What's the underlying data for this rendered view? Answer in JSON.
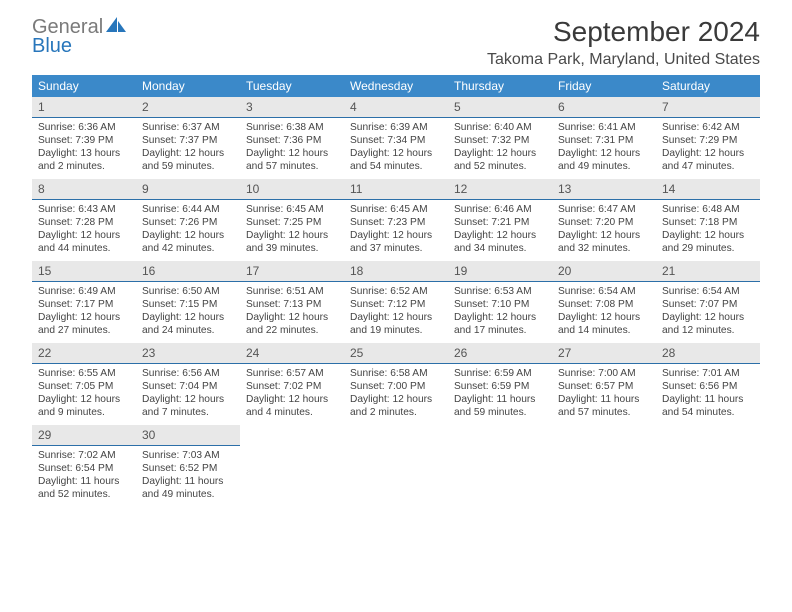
{
  "logo": {
    "line1": "General",
    "line2": "Blue"
  },
  "title": "September 2024",
  "location": "Takoma Park, Maryland, United States",
  "colors": {
    "header_bg": "#3b89c9",
    "daynum_bg": "#e8e8e8",
    "daynum_border": "#2c6fa8",
    "text": "#444444",
    "logo_gray": "#7a7a7a",
    "logo_blue": "#2876bb"
  },
  "day_names": [
    "Sunday",
    "Monday",
    "Tuesday",
    "Wednesday",
    "Thursday",
    "Friday",
    "Saturday"
  ],
  "weeks": [
    [
      {
        "num": "1",
        "sunrise": "Sunrise: 6:36 AM",
        "sunset": "Sunset: 7:39 PM",
        "daylight": "Daylight: 13 hours and 2 minutes."
      },
      {
        "num": "2",
        "sunrise": "Sunrise: 6:37 AM",
        "sunset": "Sunset: 7:37 PM",
        "daylight": "Daylight: 12 hours and 59 minutes."
      },
      {
        "num": "3",
        "sunrise": "Sunrise: 6:38 AM",
        "sunset": "Sunset: 7:36 PM",
        "daylight": "Daylight: 12 hours and 57 minutes."
      },
      {
        "num": "4",
        "sunrise": "Sunrise: 6:39 AM",
        "sunset": "Sunset: 7:34 PM",
        "daylight": "Daylight: 12 hours and 54 minutes."
      },
      {
        "num": "5",
        "sunrise": "Sunrise: 6:40 AM",
        "sunset": "Sunset: 7:32 PM",
        "daylight": "Daylight: 12 hours and 52 minutes."
      },
      {
        "num": "6",
        "sunrise": "Sunrise: 6:41 AM",
        "sunset": "Sunset: 7:31 PM",
        "daylight": "Daylight: 12 hours and 49 minutes."
      },
      {
        "num": "7",
        "sunrise": "Sunrise: 6:42 AM",
        "sunset": "Sunset: 7:29 PM",
        "daylight": "Daylight: 12 hours and 47 minutes."
      }
    ],
    [
      {
        "num": "8",
        "sunrise": "Sunrise: 6:43 AM",
        "sunset": "Sunset: 7:28 PM",
        "daylight": "Daylight: 12 hours and 44 minutes."
      },
      {
        "num": "9",
        "sunrise": "Sunrise: 6:44 AM",
        "sunset": "Sunset: 7:26 PM",
        "daylight": "Daylight: 12 hours and 42 minutes."
      },
      {
        "num": "10",
        "sunrise": "Sunrise: 6:45 AM",
        "sunset": "Sunset: 7:25 PM",
        "daylight": "Daylight: 12 hours and 39 minutes."
      },
      {
        "num": "11",
        "sunrise": "Sunrise: 6:45 AM",
        "sunset": "Sunset: 7:23 PM",
        "daylight": "Daylight: 12 hours and 37 minutes."
      },
      {
        "num": "12",
        "sunrise": "Sunrise: 6:46 AM",
        "sunset": "Sunset: 7:21 PM",
        "daylight": "Daylight: 12 hours and 34 minutes."
      },
      {
        "num": "13",
        "sunrise": "Sunrise: 6:47 AM",
        "sunset": "Sunset: 7:20 PM",
        "daylight": "Daylight: 12 hours and 32 minutes."
      },
      {
        "num": "14",
        "sunrise": "Sunrise: 6:48 AM",
        "sunset": "Sunset: 7:18 PM",
        "daylight": "Daylight: 12 hours and 29 minutes."
      }
    ],
    [
      {
        "num": "15",
        "sunrise": "Sunrise: 6:49 AM",
        "sunset": "Sunset: 7:17 PM",
        "daylight": "Daylight: 12 hours and 27 minutes."
      },
      {
        "num": "16",
        "sunrise": "Sunrise: 6:50 AM",
        "sunset": "Sunset: 7:15 PM",
        "daylight": "Daylight: 12 hours and 24 minutes."
      },
      {
        "num": "17",
        "sunrise": "Sunrise: 6:51 AM",
        "sunset": "Sunset: 7:13 PM",
        "daylight": "Daylight: 12 hours and 22 minutes."
      },
      {
        "num": "18",
        "sunrise": "Sunrise: 6:52 AM",
        "sunset": "Sunset: 7:12 PM",
        "daylight": "Daylight: 12 hours and 19 minutes."
      },
      {
        "num": "19",
        "sunrise": "Sunrise: 6:53 AM",
        "sunset": "Sunset: 7:10 PM",
        "daylight": "Daylight: 12 hours and 17 minutes."
      },
      {
        "num": "20",
        "sunrise": "Sunrise: 6:54 AM",
        "sunset": "Sunset: 7:08 PM",
        "daylight": "Daylight: 12 hours and 14 minutes."
      },
      {
        "num": "21",
        "sunrise": "Sunrise: 6:54 AM",
        "sunset": "Sunset: 7:07 PM",
        "daylight": "Daylight: 12 hours and 12 minutes."
      }
    ],
    [
      {
        "num": "22",
        "sunrise": "Sunrise: 6:55 AM",
        "sunset": "Sunset: 7:05 PM",
        "daylight": "Daylight: 12 hours and 9 minutes."
      },
      {
        "num": "23",
        "sunrise": "Sunrise: 6:56 AM",
        "sunset": "Sunset: 7:04 PM",
        "daylight": "Daylight: 12 hours and 7 minutes."
      },
      {
        "num": "24",
        "sunrise": "Sunrise: 6:57 AM",
        "sunset": "Sunset: 7:02 PM",
        "daylight": "Daylight: 12 hours and 4 minutes."
      },
      {
        "num": "25",
        "sunrise": "Sunrise: 6:58 AM",
        "sunset": "Sunset: 7:00 PM",
        "daylight": "Daylight: 12 hours and 2 minutes."
      },
      {
        "num": "26",
        "sunrise": "Sunrise: 6:59 AM",
        "sunset": "Sunset: 6:59 PM",
        "daylight": "Daylight: 11 hours and 59 minutes."
      },
      {
        "num": "27",
        "sunrise": "Sunrise: 7:00 AM",
        "sunset": "Sunset: 6:57 PM",
        "daylight": "Daylight: 11 hours and 57 minutes."
      },
      {
        "num": "28",
        "sunrise": "Sunrise: 7:01 AM",
        "sunset": "Sunset: 6:56 PM",
        "daylight": "Daylight: 11 hours and 54 minutes."
      }
    ],
    [
      {
        "num": "29",
        "sunrise": "Sunrise: 7:02 AM",
        "sunset": "Sunset: 6:54 PM",
        "daylight": "Daylight: 11 hours and 52 minutes."
      },
      {
        "num": "30",
        "sunrise": "Sunrise: 7:03 AM",
        "sunset": "Sunset: 6:52 PM",
        "daylight": "Daylight: 11 hours and 49 minutes."
      },
      null,
      null,
      null,
      null,
      null
    ]
  ]
}
